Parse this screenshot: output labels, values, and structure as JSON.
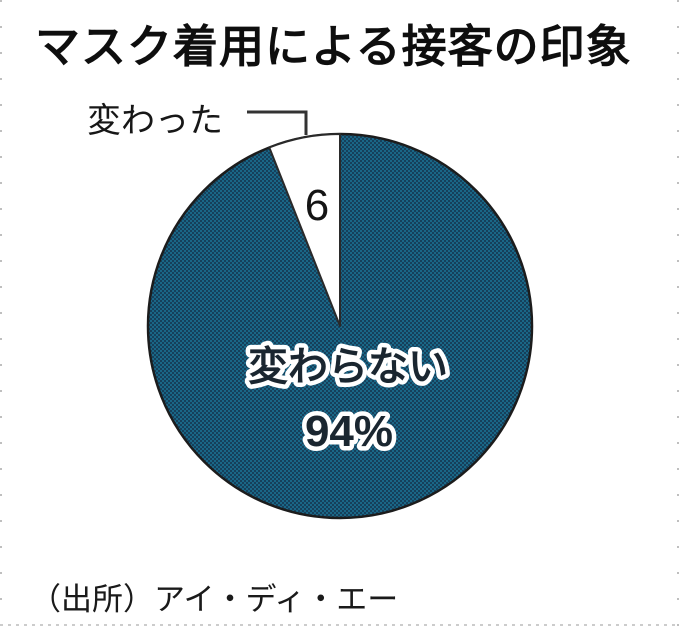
{
  "title": "マスク着用による接客の印象",
  "source": "（出所）アイ・ディ・エー",
  "chart_data": {
    "type": "pie",
    "title": "マスク着用による接客の印象",
    "unit": "%",
    "start_angle_deg": 0,
    "legend": "none",
    "slices": [
      {
        "label": "変わらない",
        "value": 94,
        "value_label": "94%",
        "color": "#185571",
        "texture": "fine-dot-checker",
        "label_position": "inside"
      },
      {
        "label": "変わった",
        "value": 6,
        "value_label": "6",
        "color": "#ffffff",
        "label_position": "callout-top-left"
      }
    ],
    "source": "（出所）アイ・ディ・エー"
  },
  "colors": {
    "pie_teal": "#1a6787",
    "pie_navy": "#16405b",
    "pie_outline": "#1c1c1c",
    "slice_divider": "#2a2a2a",
    "callout_line": "#333333",
    "inner_label_fill": "#1a2630",
    "inner_label_halo": "#ffffff",
    "title_text": "#0e0e0e",
    "border_dots": "#bfbfbf"
  }
}
